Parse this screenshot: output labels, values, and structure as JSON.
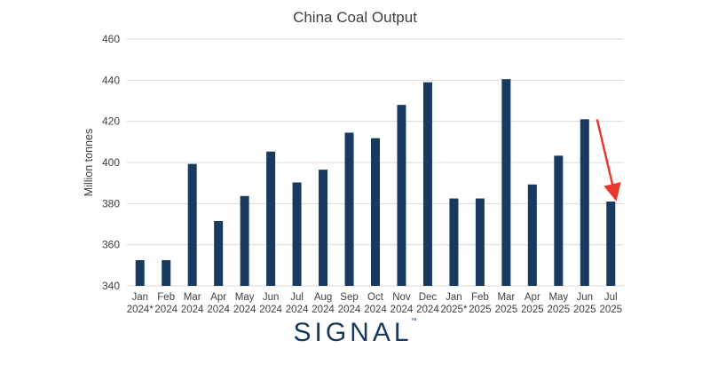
{
  "chart_data": {
    "type": "bar",
    "title": "China Coal Output",
    "ylabel": "Million tonnes",
    "xlabel": "",
    "ylim": [
      340,
      460
    ],
    "yticks": [
      340,
      360,
      380,
      400,
      420,
      440,
      460
    ],
    "grid": true,
    "legend": "none",
    "bar_color": "#173a5e",
    "annotation_color": "#e8382f",
    "categories": [
      [
        "Jan",
        "2024*"
      ],
      [
        "Feb",
        "2024"
      ],
      [
        "Mar",
        "2024"
      ],
      [
        "Apr",
        "2024"
      ],
      [
        "May",
        "2024"
      ],
      [
        "Jun",
        "2024"
      ],
      [
        "Jul",
        "2024"
      ],
      [
        "Aug",
        "2024"
      ],
      [
        "Sep",
        "2024"
      ],
      [
        "Oct",
        "2024"
      ],
      [
        "Nov",
        "2024"
      ],
      [
        "Dec",
        "2024"
      ],
      [
        "Jan",
        "2025*"
      ],
      [
        "Feb",
        "2025"
      ],
      [
        "Mar",
        "2025"
      ],
      [
        "Apr",
        "2025"
      ],
      [
        "May",
        "2025"
      ],
      [
        "Jun",
        "2025"
      ],
      [
        "Jul",
        "2025"
      ]
    ],
    "values": [
      352.5,
      352.5,
      399.3,
      371.5,
      383.7,
      405.3,
      390.3,
      396.5,
      414.5,
      411.8,
      428,
      439,
      382.5,
      382.5,
      440.5,
      389.3,
      403.3,
      421,
      381
    ],
    "annotations": [
      {
        "type": "arrow",
        "from_category": "Jun 2025",
        "to_category": "Jul 2025"
      }
    ]
  },
  "branding": {
    "logo_text": "SIGNAL",
    "trademark": "™"
  }
}
